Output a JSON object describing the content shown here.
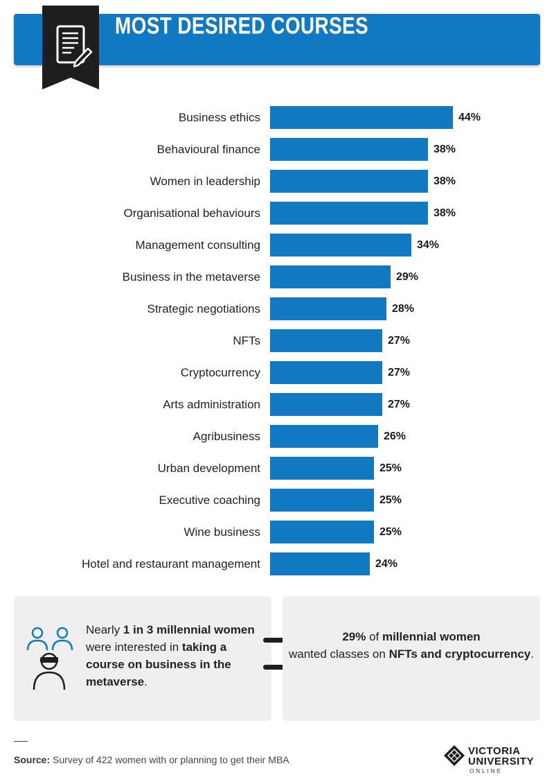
{
  "header": {
    "title": "MOST DESIRED COURSES"
  },
  "chart_data": {
    "type": "bar",
    "orientation": "horizontal",
    "categories": [
      "Business ethics",
      "Behavioural finance",
      "Women in leadership",
      "Organisational behaviours",
      "Management consulting",
      "Business in the metaverse",
      "Strategic negotiations",
      "NFTs",
      "Cryptocurrency",
      "Arts administration",
      "Agribusiness",
      "Urban development",
      "Executive coaching",
      "Wine business",
      "Hotel and restaurant management"
    ],
    "values": [
      44,
      38,
      38,
      38,
      34,
      29,
      28,
      27,
      27,
      27,
      26,
      25,
      25,
      25,
      24
    ],
    "value_labels": [
      "44%",
      "38%",
      "38%",
      "38%",
      "34%",
      "29%",
      "28%",
      "27%",
      "27%",
      "27%",
      "26%",
      "25%",
      "25%",
      "25%",
      "24%"
    ],
    "unit": "%",
    "bar_color": "#1178c2",
    "title": "",
    "xlabel": "",
    "ylabel": "",
    "xlim": [
      0,
      44
    ],
    "grid": false
  },
  "panels": {
    "left": {
      "t1": "Nearly ",
      "b1": "1 in 3 millennial women",
      "t2": " were interested in ",
      "b2": "taking a course on business in the metaverse",
      "t3": "."
    },
    "right": {
      "b1": "29%",
      "t1": " of ",
      "b2": "millennial women",
      "t2": " wanted classes on ",
      "b3": "NFTs and cryptocurrency",
      "t3": "."
    }
  },
  "footer": {
    "source_label": "Source:",
    "source_text": " Survey of 422 women with or planning to get their MBA",
    "logo_line1": "VICTORIA",
    "logo_line2": "UNIVERSITY",
    "logo_line3": "ONLINE"
  },
  "colors": {
    "accent": "#1178c2",
    "dark": "#1e1e1e",
    "panel": "#efefef"
  },
  "icons": {
    "header": "document-pen-icon",
    "panel": "people-vr-headset-icon",
    "equals": "equals-icon"
  }
}
